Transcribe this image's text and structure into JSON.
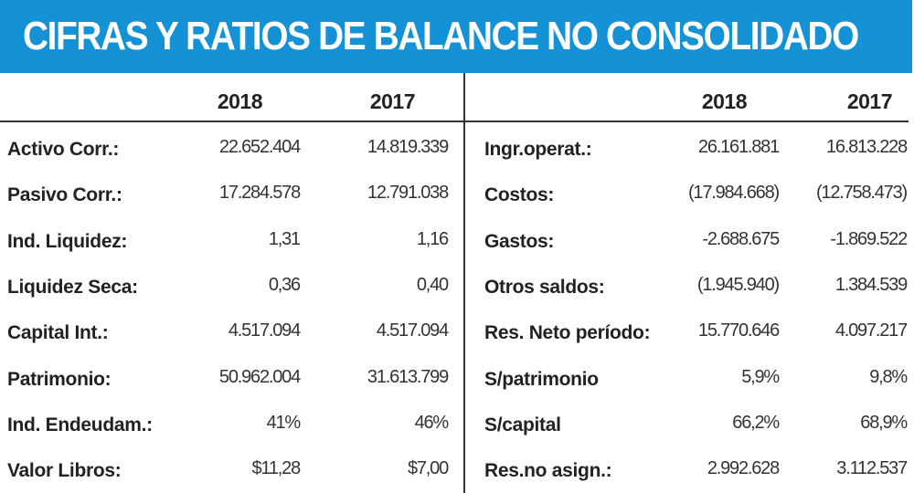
{
  "title": "CIFRAS Y RATIOS DE BALANCE NO CONSOLIDADO",
  "colors": {
    "banner": "#1592d6"
  },
  "left_table": {
    "headers": [
      "2018",
      "2017"
    ],
    "rows": [
      {
        "label": "Activo Corr.:",
        "v2018": "22.652.404",
        "v2017": "14.819.339"
      },
      {
        "label": "Pasivo Corr.:",
        "v2018": "17.284.578",
        "v2017": "12.791.038"
      },
      {
        "label": "Ind. Liquidez:",
        "v2018": "1,31",
        "v2017": "1,16"
      },
      {
        "label": "Liquidez Seca:",
        "v2018": "0,36",
        "v2017": "0,40"
      },
      {
        "label": "Capital Int.:",
        "v2018": "4.517.094",
        "v2017": "4.517.094"
      },
      {
        "label": "Patrimonio:",
        "v2018": "50.962.004",
        "v2017": "31.613.799"
      },
      {
        "label": "Ind. Endeudam.:",
        "v2018": "41%",
        "v2017": "46%"
      },
      {
        "label": "Valor Libros:",
        "v2018": "$11,28",
        "v2017": "$7,00"
      }
    ]
  },
  "right_table": {
    "headers": [
      "2018",
      "2017"
    ],
    "rows": [
      {
        "label": "Ingr.operat.:",
        "v2018": "26.161.881",
        "v2017": "16.813.228"
      },
      {
        "label": "Costos:",
        "v2018": "(17.984.668)",
        "v2017": "(12.758.473)"
      },
      {
        "label": "Gastos:",
        "v2018": "-2.688.675",
        "v2017": "-1.869.522"
      },
      {
        "label": "Otros saldos:",
        "v2018": "(1.945.940)",
        "v2017": "1.384.539"
      },
      {
        "label": "Res. Neto período:",
        "v2018": "15.770.646",
        "v2017": "4.097.217"
      },
      {
        "label": "S/patrimonio",
        "v2018": "5,9%",
        "v2017": "9,8%"
      },
      {
        "label": "S/capital",
        "v2018": "66,2%",
        "v2017": "68,9%"
      },
      {
        "label": "Res.no asign.:",
        "v2018": "2.992.628",
        "v2017": "3.112.537"
      }
    ]
  }
}
